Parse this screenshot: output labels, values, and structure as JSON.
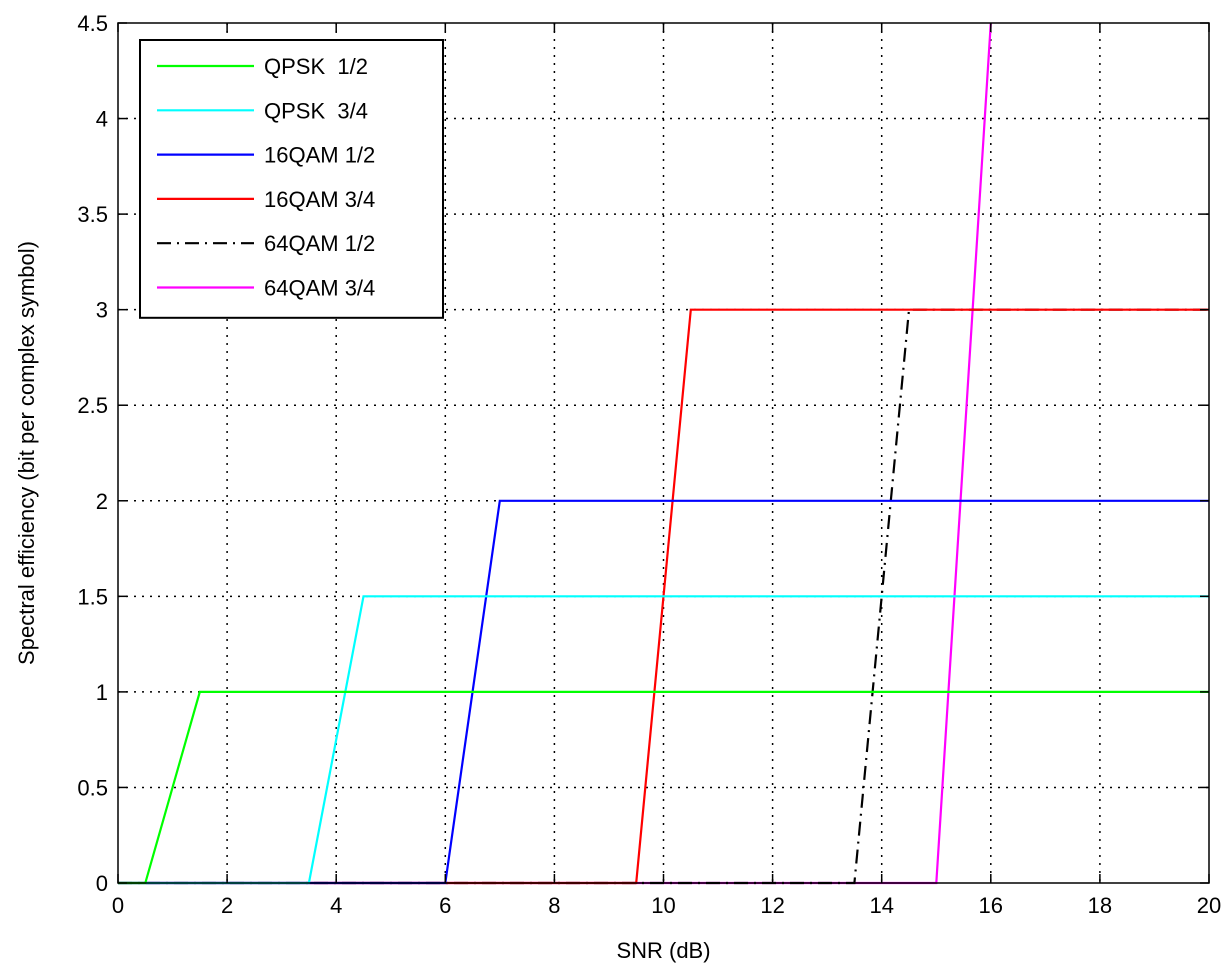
{
  "chart_data": {
    "type": "line",
    "title": "",
    "xlabel": "SNR (dB)",
    "ylabel": "Spectral efficiency (bit per complex symbol)",
    "xlim": [
      0,
      20
    ],
    "ylim": [
      0,
      4.5
    ],
    "xticks": [
      0,
      2,
      4,
      6,
      8,
      10,
      12,
      14,
      16,
      18,
      20
    ],
    "yticks": [
      0,
      0.5,
      1,
      1.5,
      2,
      2.5,
      3,
      3.5,
      4,
      4.5
    ],
    "xtick_labels": [
      "0",
      "2",
      "4",
      "6",
      "8",
      "10",
      "12",
      "14",
      "16",
      "18",
      "20"
    ],
    "ytick_labels": [
      "0",
      "0.5",
      "1",
      "1.5",
      "2",
      "2.5",
      "3",
      "3.5",
      "4",
      "4.5"
    ],
    "grid": true,
    "legend_position": "top-left",
    "series": [
      {
        "name": "QPSK  1/2",
        "color": "#00ff00",
        "dash": "solid",
        "points": [
          [
            0,
            0
          ],
          [
            0.5,
            0
          ],
          [
            1.5,
            1
          ],
          [
            20,
            1
          ]
        ]
      },
      {
        "name": "QPSK  3/4",
        "color": "#00ffff",
        "dash": "solid",
        "points": [
          [
            0,
            0
          ],
          [
            3.5,
            0
          ],
          [
            4.5,
            1.5
          ],
          [
            20,
            1.5
          ]
        ]
      },
      {
        "name": "16QAM 1/2",
        "color": "#0000ff",
        "dash": "solid",
        "points": [
          [
            0,
            0
          ],
          [
            6,
            0
          ],
          [
            7,
            2
          ],
          [
            20,
            2
          ]
        ]
      },
      {
        "name": "16QAM 3/4",
        "color": "#ff0000",
        "dash": "solid",
        "points": [
          [
            0,
            0
          ],
          [
            9.5,
            0
          ],
          [
            10.5,
            3
          ],
          [
            20,
            3
          ]
        ]
      },
      {
        "name": "64QAM 1/2",
        "color": "#000000",
        "dash": "dashdot",
        "points": [
          [
            0,
            0
          ],
          [
            13.5,
            0
          ],
          [
            14.5,
            3
          ],
          [
            20,
            3
          ]
        ]
      },
      {
        "name": "64QAM 3/4",
        "color": "#ff00ff",
        "dash": "solid",
        "points": [
          [
            0,
            0
          ],
          [
            15,
            0
          ],
          [
            16,
            4.5
          ]
        ]
      }
    ]
  }
}
